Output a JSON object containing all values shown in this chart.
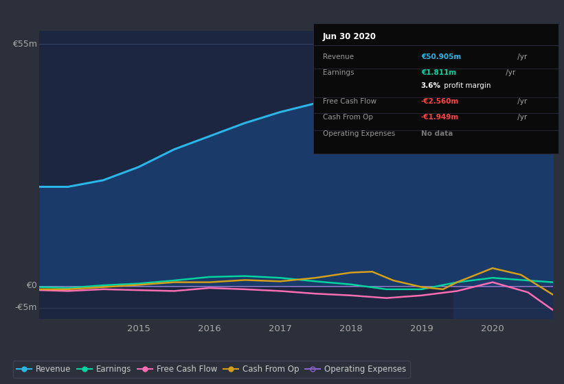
{
  "bg_color": "#2b303b",
  "plot_bg_color": "#1c2640",
  "plot_bg_color_right": "#1e2e50",
  "ylabel_top": "€55m",
  "ylabel_zero": "€0",
  "ylabel_bottom": "-€5m",
  "x_ticks": [
    2015,
    2016,
    2017,
    2018,
    2019,
    2020
  ],
  "x_min": 2013.6,
  "x_max": 2020.85,
  "y_min": -7.5,
  "y_max": 58,
  "shaded_x_start": 2019.45,
  "revenue": {
    "x": [
      2013.6,
      2014.0,
      2014.5,
      2015.0,
      2015.5,
      2016.0,
      2016.5,
      2017.0,
      2017.5,
      2018.0,
      2018.5,
      2019.0,
      2019.5,
      2020.0,
      2020.4,
      2020.7,
      2020.85
    ],
    "y": [
      22.5,
      22.5,
      24.0,
      27.0,
      31.0,
      34.0,
      37.0,
      39.5,
      41.5,
      42.5,
      41.5,
      38.5,
      38.0,
      42.0,
      50.0,
      52.5,
      51.5
    ],
    "color": "#2ab7e8",
    "fill_color": "#1a3a6a",
    "lw": 2.2
  },
  "earnings": {
    "x": [
      2013.6,
      2014.0,
      2014.5,
      2015.0,
      2015.5,
      2016.0,
      2016.5,
      2017.0,
      2017.5,
      2018.0,
      2018.5,
      2019.0,
      2019.5,
      2020.0,
      2020.5,
      2020.85
    ],
    "y": [
      -0.3,
      -0.5,
      0.1,
      0.5,
      1.2,
      2.0,
      2.2,
      1.8,
      1.0,
      0.3,
      -0.8,
      -0.8,
      0.8,
      1.8,
      1.2,
      0.8
    ],
    "color": "#00d4a0",
    "lw": 1.8
  },
  "free_cash_flow": {
    "x": [
      2013.6,
      2014.0,
      2014.5,
      2015.0,
      2015.5,
      2016.0,
      2016.5,
      2017.0,
      2017.5,
      2018.0,
      2018.5,
      2019.0,
      2019.5,
      2020.0,
      2020.5,
      2020.85
    ],
    "y": [
      -1.0,
      -1.2,
      -0.8,
      -1.0,
      -1.2,
      -0.5,
      -0.8,
      -1.2,
      -1.8,
      -2.2,
      -2.8,
      -2.2,
      -1.2,
      0.8,
      -1.5,
      -5.5
    ],
    "color": "#ff6eb4",
    "lw": 1.8
  },
  "cash_from_op": {
    "x": [
      2013.6,
      2014.0,
      2014.5,
      2015.0,
      2015.5,
      2016.0,
      2016.5,
      2017.0,
      2017.5,
      2018.0,
      2018.3,
      2018.6,
      2019.0,
      2019.3,
      2019.5,
      2020.0,
      2020.4,
      2020.85
    ],
    "y": [
      -0.8,
      -0.8,
      -0.3,
      0.2,
      0.8,
      0.8,
      1.3,
      1.0,
      1.8,
      3.0,
      3.2,
      1.2,
      -0.3,
      -0.8,
      0.8,
      4.0,
      2.5,
      -2.0
    ],
    "color": "#d4a017",
    "lw": 1.8
  },
  "operating_expenses": {
    "x": [
      2013.6,
      2020.85
    ],
    "y": [
      -0.2,
      -0.2
    ],
    "color": "#8866cc",
    "lw": 1.2
  },
  "legend_items": [
    {
      "label": "Revenue",
      "color": "#2ab7e8",
      "marker": "o",
      "markerfill": "#2ab7e8",
      "ls": "-"
    },
    {
      "label": "Earnings",
      "color": "#00d4a0",
      "marker": "o",
      "markerfill": "#00d4a0",
      "ls": "-"
    },
    {
      "label": "Free Cash Flow",
      "color": "#ff6eb4",
      "marker": "o",
      "markerfill": "#ff6eb4",
      "ls": "-"
    },
    {
      "label": "Cash From Op",
      "color": "#d4a017",
      "marker": "o",
      "markerfill": "#d4a017",
      "ls": "-"
    },
    {
      "label": "Operating Expenses",
      "color": "#8866cc",
      "marker": "o",
      "markerfill": "none",
      "ls": "-"
    }
  ],
  "info_box": {
    "title": "Jun 30 2020",
    "rows": [
      {
        "label": "Revenue",
        "value": "€50.905m",
        "suffix": " /yr",
        "value_color": "#2ab7e8",
        "extra": null
      },
      {
        "label": "Earnings",
        "value": "€1.811m",
        "suffix": " /yr",
        "value_color": "#00d4a0",
        "extra": null
      },
      {
        "label": "",
        "value": "3.6%",
        "suffix": " profit margin",
        "value_color": "#ffffff",
        "extra": "bold_pct"
      },
      {
        "label": "Free Cash Flow",
        "value": "-€2.560m",
        "suffix": " /yr",
        "value_color": "#ff4444",
        "extra": null
      },
      {
        "label": "Cash From Op",
        "value": "-€1.949m",
        "suffix": " /yr",
        "value_color": "#ff4444",
        "extra": null
      },
      {
        "label": "Operating Expenses",
        "value": "No data",
        "suffix": "",
        "value_color": "#777777",
        "extra": null
      }
    ]
  }
}
